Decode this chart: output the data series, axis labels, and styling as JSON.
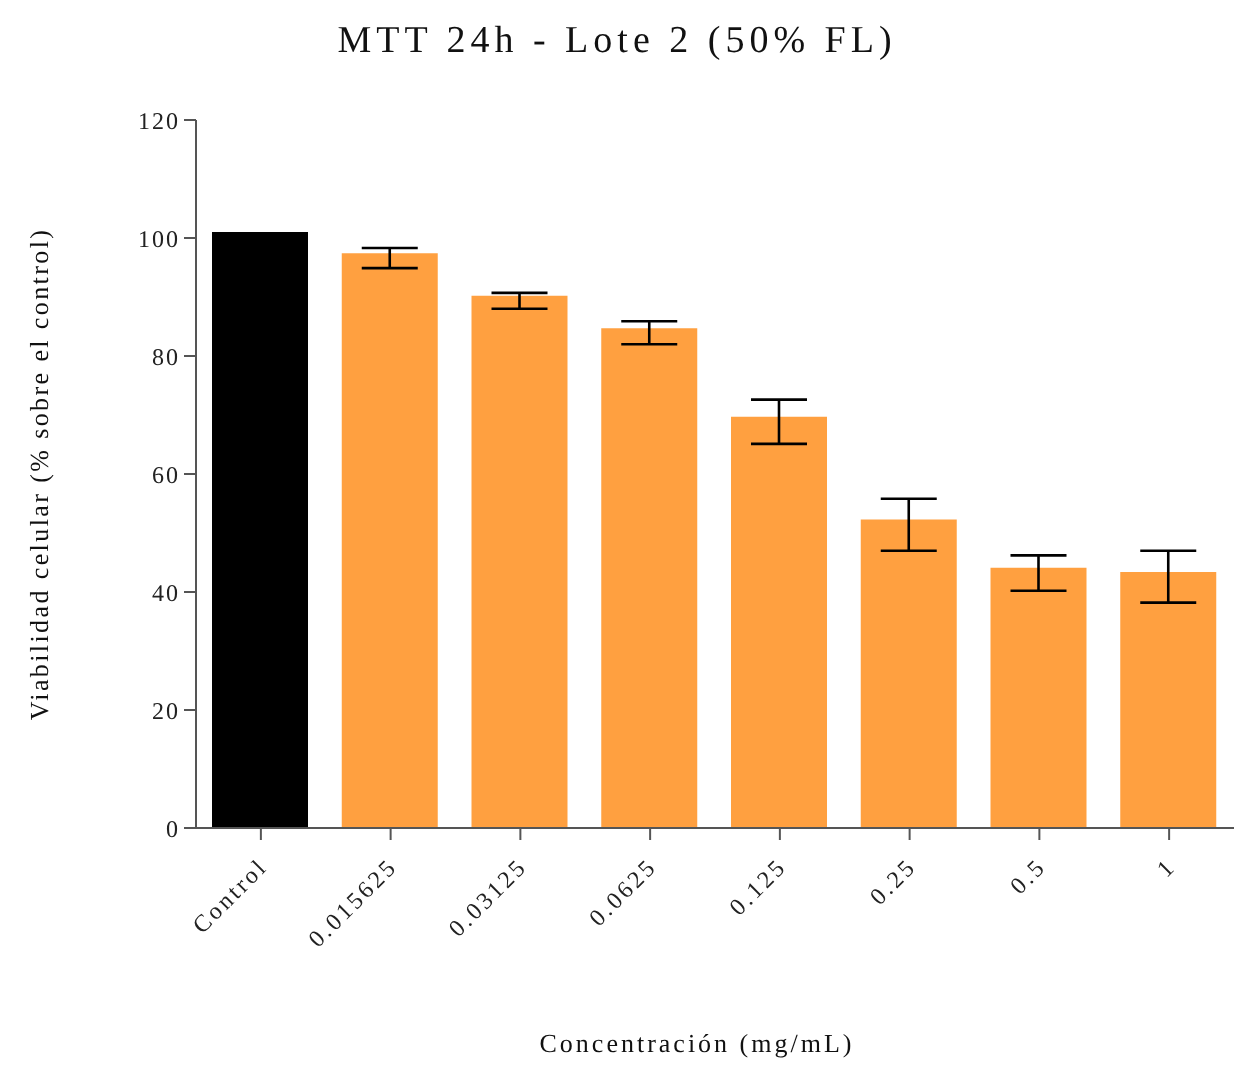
{
  "chart_data": {
    "type": "bar",
    "title": "MTT 24h - Lote 2 (50% FL)",
    "xlabel": "Concentración (mg/mL)",
    "ylabel": "Viabilidad celular (% sobre el control)",
    "categories": [
      "Control",
      "0.015625",
      "0.03125",
      "0.0625",
      "0.125",
      "0.25",
      "0.5",
      "1"
    ],
    "values": [
      101,
      97.4,
      90.2,
      84.7,
      69.7,
      52.3,
      44.1,
      43.4
    ],
    "colors": [
      "#000000",
      "#ffa040",
      "#ffa040",
      "#ffa040",
      "#ffa040",
      "#ffa040",
      "#ffa040",
      "#ffa040"
    ],
    "errors": [
      null,
      [
        94.9,
        98.3
      ],
      [
        88.0,
        90.7
      ],
      [
        82.0,
        85.9
      ],
      [
        65.1,
        72.6
      ],
      [
        47.0,
        55.8
      ],
      [
        40.2,
        46.2
      ],
      [
        38.2,
        47.0
      ]
    ],
    "ylim": [
      0,
      120
    ],
    "yticks": [
      0,
      20,
      40,
      60,
      80,
      100,
      120
    ],
    "grid": false,
    "legend": false
  }
}
